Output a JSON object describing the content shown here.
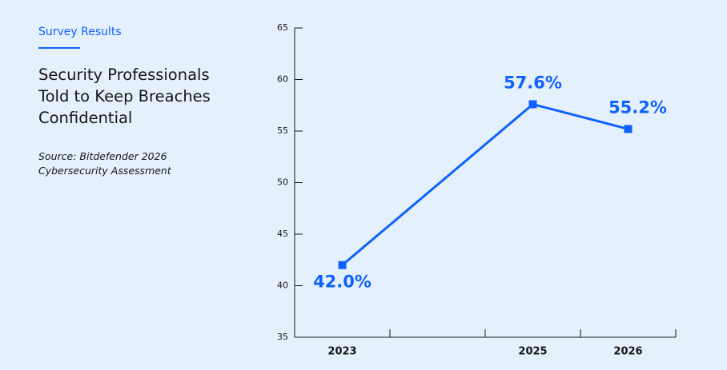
{
  "header": {
    "eyebrow": "Survey Results",
    "title_lines": [
      "Security Professionals",
      "Told to Keep Breaches",
      "Confidential"
    ],
    "source_lines": [
      "Source: Bitdefender 2026",
      "Cybersecurity Assessment"
    ]
  },
  "chart_data": {
    "type": "line",
    "x": [
      2023,
      2025,
      2026
    ],
    "series": [
      {
        "color": "#0f62fe",
        "values": [
          42.0,
          57.6,
          55.2
        ],
        "value_labels": [
          "42.0%",
          "57.6%",
          "55.2%"
        ]
      }
    ],
    "xlim": [
      2022.5,
      2026.5
    ],
    "xticks": [
      2023,
      2025,
      2026
    ],
    "ylim": [
      35,
      65
    ],
    "yticks": [
      35,
      40,
      45,
      50,
      55,
      60,
      65
    ]
  }
}
